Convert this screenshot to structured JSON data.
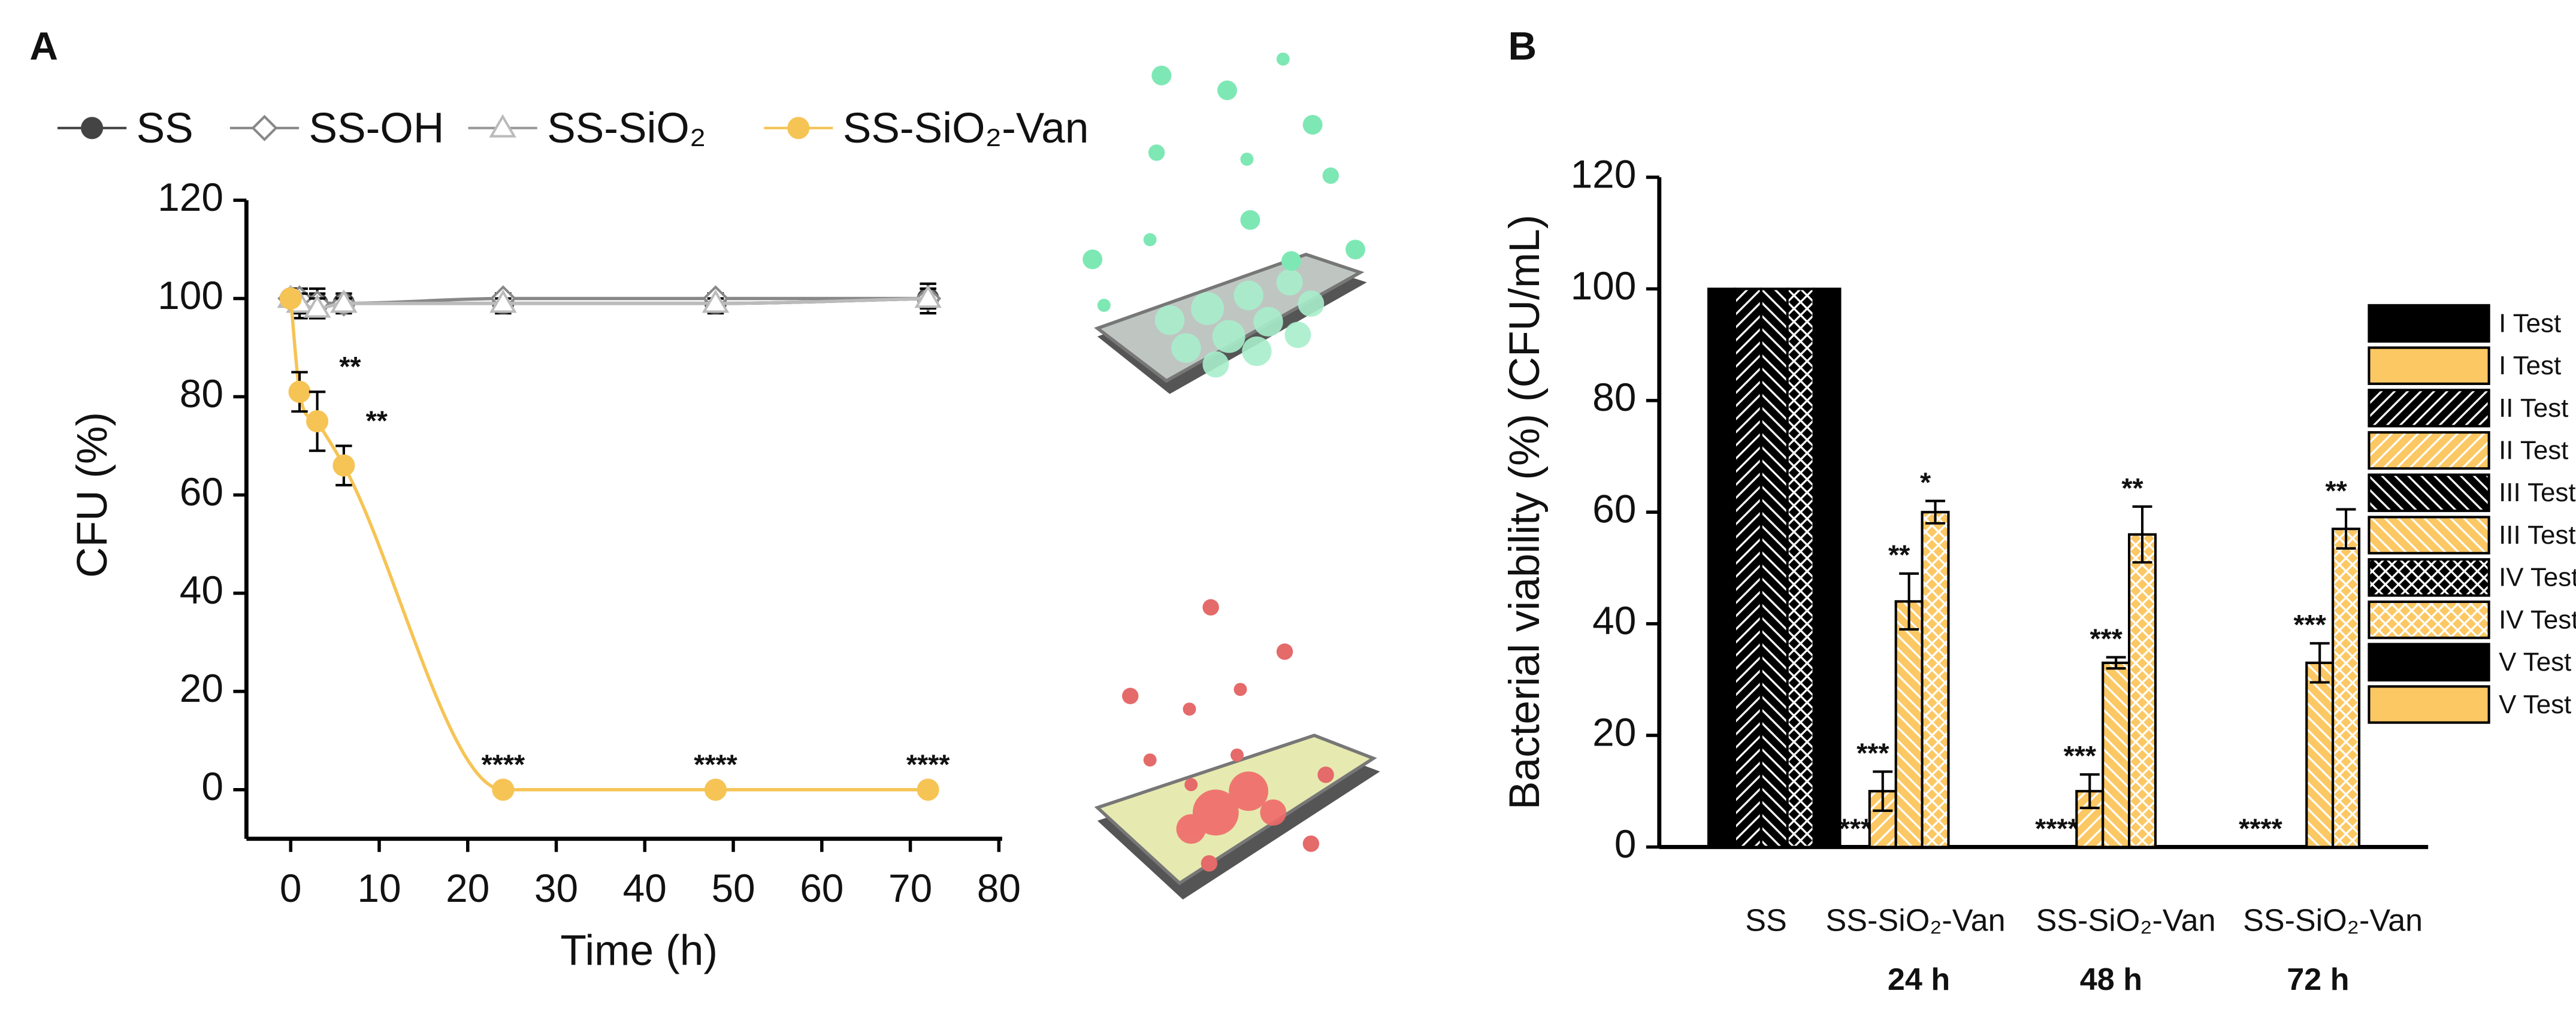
{
  "chart_data": [
    {
      "type": "line",
      "panel": "A",
      "xlabel": "Time (h)",
      "ylabel": "CFU (%)",
      "x": [
        0,
        1,
        3,
        6,
        24,
        48,
        72
      ],
      "xlim": [
        -5,
        80
      ],
      "xticks": [
        0,
        10,
        20,
        30,
        40,
        50,
        60,
        70,
        80
      ],
      "ylim": [
        -10,
        120
      ],
      "yticks": [
        0,
        20,
        40,
        60,
        80,
        100,
        120
      ],
      "series": [
        {
          "name": "SS",
          "color": "#444444",
          "marker": "circle",
          "values": [
            100,
            99,
            99,
            99,
            99,
            99,
            100
          ],
          "errors": [
            1,
            3,
            3,
            2,
            2,
            2,
            3
          ]
        },
        {
          "name": "SS-OH",
          "color": "#888888",
          "marker": "diamond",
          "values": [
            100,
            100,
            99,
            99,
            100,
            100,
            100
          ],
          "errors": [
            1,
            2,
            2,
            1,
            1,
            1,
            2
          ]
        },
        {
          "name": "SS-SiO₂",
          "color": "#bbbbbb",
          "marker": "triangle",
          "values": [
            100,
            99,
            98,
            99,
            99,
            99,
            100
          ],
          "errors": [
            1,
            2,
            2,
            1,
            1,
            1,
            2
          ]
        },
        {
          "name": "SS-SiO₂-Van",
          "color": "#f6c455",
          "marker": "circle",
          "values": [
            100,
            81,
            75,
            66,
            0,
            0,
            0
          ],
          "errors": [
            1,
            4,
            6,
            4,
            0,
            0,
            0
          ],
          "significance": [
            null,
            null,
            "**",
            "**",
            "****",
            "****",
            "****"
          ]
        }
      ]
    },
    {
      "type": "bar",
      "panel": "B",
      "ylabel": "Bacterial viability (%) (CFU/mL)",
      "categories": [
        "SS",
        "SS-SiO₂-Van",
        "SS-SiO₂-Van",
        "SS-SiO₂-Van"
      ],
      "subcategories": [
        null,
        "24 h",
        "48 h",
        "72 h"
      ],
      "ylim": [
        0,
        120
      ],
      "yticks": [
        0,
        20,
        40,
        60,
        80,
        100,
        120
      ],
      "series": [
        {
          "name": "I Test",
          "color": "#000000",
          "pattern": "none",
          "values": [
            100,
            null,
            null,
            null
          ]
        },
        {
          "name": "I Test",
          "color": "#fcc864",
          "pattern": "none",
          "values": [
            null,
            0,
            0,
            0
          ],
          "significance": [
            null,
            "****",
            "****",
            "****"
          ]
        },
        {
          "name": "II Test",
          "color": "#000000",
          "pattern": "forward",
          "values": [
            100,
            null,
            null,
            null
          ]
        },
        {
          "name": "II Test",
          "color": "#fcc864",
          "pattern": "forward",
          "values": [
            null,
            10,
            10,
            null
          ],
          "errors": [
            null,
            3.5,
            3,
            null
          ],
          "significance": [
            null,
            "***",
            "***",
            null
          ]
        },
        {
          "name": "III Test",
          "color": "#000000",
          "pattern": "backward",
          "values": [
            100,
            null,
            null,
            null
          ]
        },
        {
          "name": "III Test",
          "color": "#fcc864",
          "pattern": "backward",
          "values": [
            null,
            44,
            33,
            33
          ],
          "errors": [
            null,
            5,
            1,
            3.5
          ],
          "significance": [
            null,
            "**",
            "***",
            "***"
          ]
        },
        {
          "name": "IV Test",
          "color": "#000000",
          "pattern": "cross",
          "values": [
            100,
            null,
            null,
            null
          ]
        },
        {
          "name": "IV Test",
          "color": "#fcc864",
          "pattern": "cross",
          "values": [
            null,
            60,
            56,
            57
          ],
          "errors": [
            null,
            2,
            5,
            3.5
          ],
          "significance": [
            null,
            "*",
            "**",
            "**"
          ]
        },
        {
          "name": "V Test",
          "color": "#000000",
          "pattern": "none",
          "values": [
            100,
            null,
            null,
            null
          ]
        },
        {
          "name": "V Test",
          "color": "#fcc864",
          "pattern": "none",
          "values": [
            null,
            null,
            null,
            null
          ]
        }
      ]
    }
  ]
}
